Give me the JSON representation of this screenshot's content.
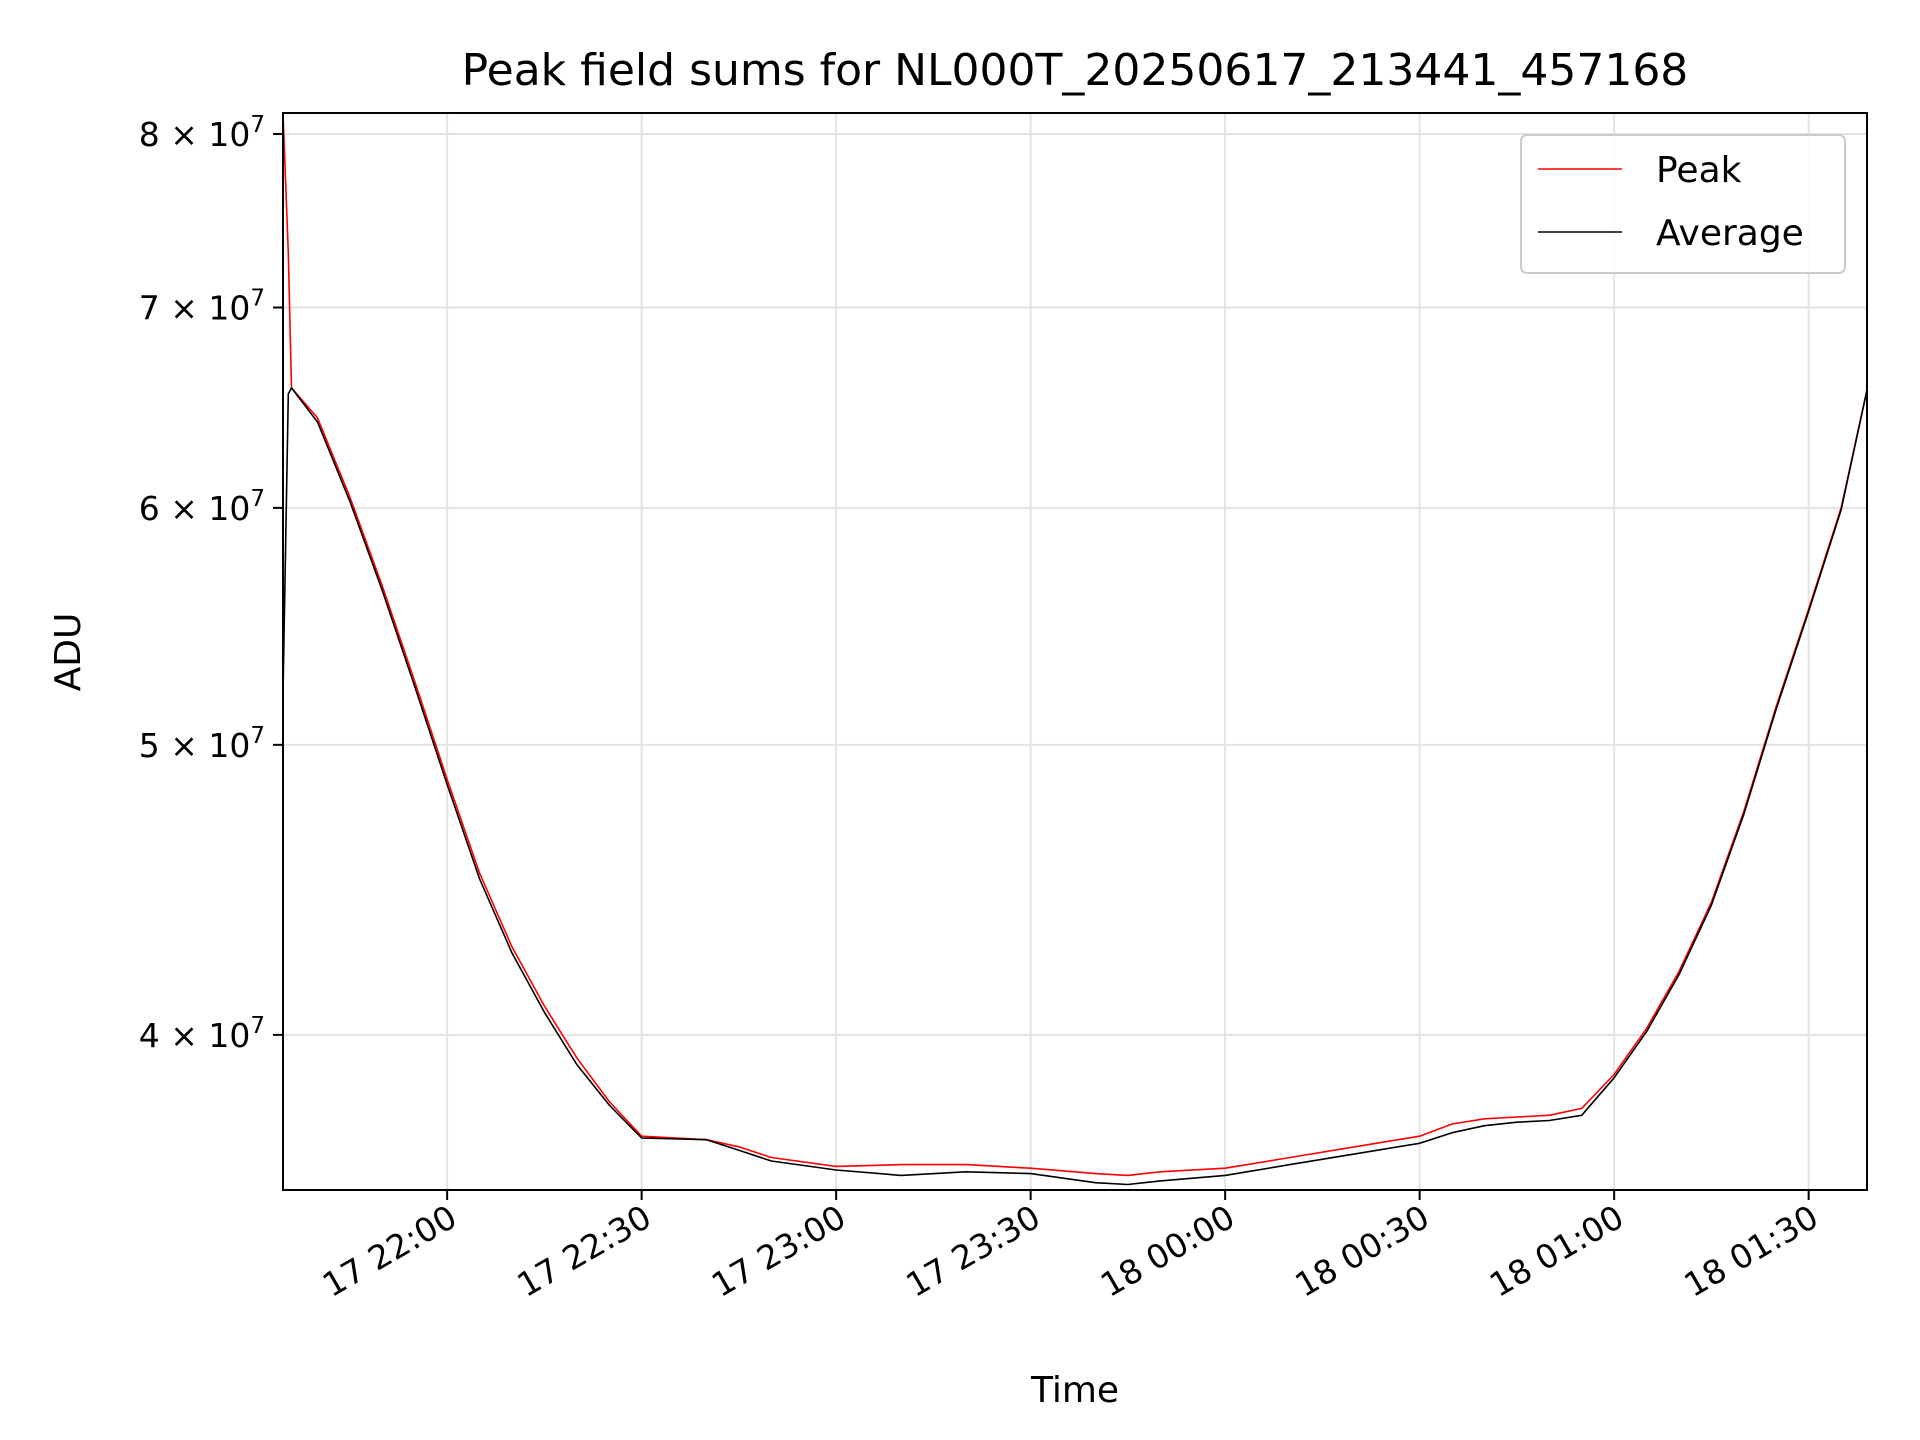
{
  "chart_data": {
    "type": "line",
    "title": "Peak field sums for NL000T_20250617_213441_457168",
    "xlabel": "Time",
    "ylabel": "ADU",
    "x_axis_kind": "time",
    "y_scale": "log",
    "xlim": [
      "2025-06-17T21:34:41",
      "2025-06-18T01:39:00"
    ],
    "ylim": [
      35500000,
      81300000
    ],
    "grid": true,
    "legend_position": "upper right",
    "x_ticks": [
      {
        "t": "2025-06-17T22:00:00",
        "label": "17 22:00"
      },
      {
        "t": "2025-06-17T22:30:00",
        "label": "17 22:30"
      },
      {
        "t": "2025-06-17T23:00:00",
        "label": "17 23:00"
      },
      {
        "t": "2025-06-17T23:30:00",
        "label": "17 23:30"
      },
      {
        "t": "2025-06-18T00:00:00",
        "label": "18 00:00"
      },
      {
        "t": "2025-06-18T00:30:00",
        "label": "18 00:30"
      },
      {
        "t": "2025-06-18T01:00:00",
        "label": "18 01:00"
      },
      {
        "t": "2025-06-18T01:30:00",
        "label": "18 01:30"
      }
    ],
    "y_ticks": [
      {
        "value": 40000000,
        "mant": "4",
        "exp": "7"
      },
      {
        "value": 50000000,
        "mant": "5",
        "exp": "7"
      },
      {
        "value": 60000000,
        "mant": "6",
        "exp": "7"
      },
      {
        "value": 70000000,
        "mant": "7",
        "exp": "7"
      },
      {
        "value": 80000000,
        "mant": "8",
        "exp": "7"
      }
    ],
    "series": [
      {
        "name": "Peak",
        "color": "#ff0000",
        "x": [
          "2025-06-17T21:34:41",
          "2025-06-17T21:35:30",
          "2025-06-17T21:36:00",
          "2025-06-17T21:40:00",
          "2025-06-17T21:45:00",
          "2025-06-17T21:50:00",
          "2025-06-17T21:55:00",
          "2025-06-17T22:00:00",
          "2025-06-17T22:05:00",
          "2025-06-17T22:10:00",
          "2025-06-17T22:15:00",
          "2025-06-17T22:20:00",
          "2025-06-17T22:25:00",
          "2025-06-17T22:30:00",
          "2025-06-17T22:40:00",
          "2025-06-17T22:45:00",
          "2025-06-17T22:50:00",
          "2025-06-17T23:00:00",
          "2025-06-17T23:10:00",
          "2025-06-17T23:20:00",
          "2025-06-17T23:30:00",
          "2025-06-17T23:40:00",
          "2025-06-17T23:45:00",
          "2025-06-17T23:50:00",
          "2025-06-18T00:00:00",
          "2025-06-18T00:10:00",
          "2025-06-18T00:20:00",
          "2025-06-18T00:30:00",
          "2025-06-18T00:35:00",
          "2025-06-18T00:40:00",
          "2025-06-18T00:45:00",
          "2025-06-18T00:50:00",
          "2025-06-18T00:55:00",
          "2025-06-18T01:00:00",
          "2025-06-18T01:05:00",
          "2025-06-18T01:10:00",
          "2025-06-18T01:15:00",
          "2025-06-18T01:20:00",
          "2025-06-18T01:25:00",
          "2025-06-18T01:30:00",
          "2025-06-18T01:35:00",
          "2025-06-18T01:39:00"
        ],
        "values": [
          81300000,
          73000000,
          65800000,
          64300000,
          60500000,
          56500000,
          52500000,
          48700000,
          45300000,
          42800000,
          40900000,
          39300000,
          38000000,
          37000000,
          36900000,
          36700000,
          36400000,
          36150000,
          36200000,
          36200000,
          36100000,
          35950000,
          35900000,
          36000000,
          36100000,
          36400000,
          36700000,
          37000000,
          37350000,
          37500000,
          37550000,
          37600000,
          37800000,
          38800000,
          40200000,
          42000000,
          44300000,
          47500000,
          51500000,
          55500000,
          60000000,
          65700000
        ]
      },
      {
        "name": "Average",
        "color": "#000000",
        "x": [
          "2025-06-17T21:34:41",
          "2025-06-17T21:35:30",
          "2025-06-17T21:36:00",
          "2025-06-17T21:40:00",
          "2025-06-17T21:45:00",
          "2025-06-17T21:50:00",
          "2025-06-17T21:55:00",
          "2025-06-17T22:00:00",
          "2025-06-17T22:05:00",
          "2025-06-17T22:10:00",
          "2025-06-17T22:15:00",
          "2025-06-17T22:20:00",
          "2025-06-17T22:25:00",
          "2025-06-17T22:30:00",
          "2025-06-17T22:40:00",
          "2025-06-17T22:45:00",
          "2025-06-17T22:50:00",
          "2025-06-17T23:00:00",
          "2025-06-17T23:10:00",
          "2025-06-17T23:20:00",
          "2025-06-17T23:30:00",
          "2025-06-17T23:40:00",
          "2025-06-17T23:45:00",
          "2025-06-17T23:50:00",
          "2025-06-18T00:00:00",
          "2025-06-18T00:10:00",
          "2025-06-18T00:20:00",
          "2025-06-18T00:30:00",
          "2025-06-18T00:35:00",
          "2025-06-18T00:40:00",
          "2025-06-18T00:45:00",
          "2025-06-18T00:50:00",
          "2025-06-18T00:55:00",
          "2025-06-18T01:00:00",
          "2025-06-18T01:05:00",
          "2025-06-18T01:10:00",
          "2025-06-18T01:15:00",
          "2025-06-18T01:20:00",
          "2025-06-18T01:25:00",
          "2025-06-18T01:30:00",
          "2025-06-18T01:35:00",
          "2025-06-18T01:39:00"
        ],
        "values": [
          52000000,
          65500000,
          65800000,
          64100000,
          60300000,
          56300000,
          52300000,
          48500000,
          45100000,
          42600000,
          40700000,
          39100000,
          37900000,
          36950000,
          36900000,
          36600000,
          36300000,
          36050000,
          35900000,
          36000000,
          35950000,
          35700000,
          35650000,
          35750000,
          35900000,
          36200000,
          36500000,
          36800000,
          37100000,
          37300000,
          37400000,
          37450000,
          37600000,
          38700000,
          40100000,
          41900000,
          44200000,
          47400000,
          51400000,
          55400000,
          59900000,
          65700000
        ]
      }
    ]
  }
}
